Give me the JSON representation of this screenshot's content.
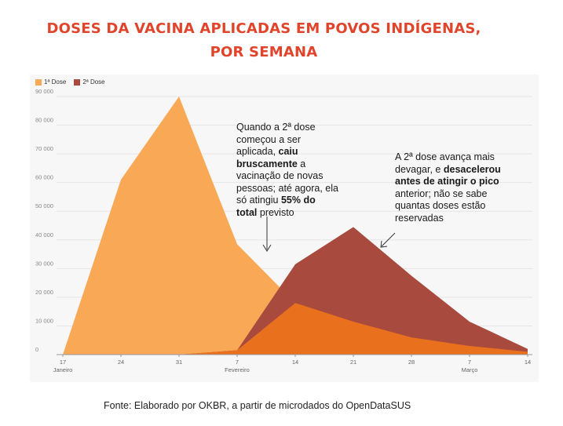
{
  "title_line1": "DOSES DA VACINA APLICADAS EM POVOS INDÍGENAS,",
  "title_line2": "POR SEMANA",
  "source": "Fonte: Elaborado por OKBR, a partir de microdados do OpenDataSUS",
  "annotation1": {
    "p1": "Quando a 2ª dose começou a ser aplicada, ",
    "b1": "caiu bruscamente",
    "p2": " a vacinação de novas pessoas; até agora, ela só atingiu ",
    "b2": "55% do total",
    "p3": " previsto"
  },
  "annotation2": {
    "p1": "A 2ª dose avança mais devagar, e ",
    "b1": "desacelerou antes de atingir o pico",
    "p2": " anterior; não se sabe quantas doses estão reservadas"
  },
  "colors": {
    "title": "#e0452c",
    "dose1": "#f9a855",
    "dose2": "#a94a3e",
    "overlap": "#e9711e",
    "plot_bg": "#f7f7f7",
    "grid": "#e6e6e6"
  },
  "chart_data": {
    "type": "area",
    "categories": [
      "17",
      "24",
      "31",
      "7",
      "14",
      "21",
      "28",
      "7",
      "14"
    ],
    "month_labels": [
      "Janeiro",
      "",
      "",
      "Fevereiro",
      "",
      "",
      "",
      "Março",
      ""
    ],
    "series": [
      {
        "name": "1ª Dose",
        "values": [
          0,
          61000,
          90000,
          38500,
          18000,
          11500,
          6000,
          3000,
          1000
        ]
      },
      {
        "name": "2ª Dose",
        "values": [
          0,
          0,
          0,
          1500,
          31500,
          44500,
          27500,
          11500,
          2000
        ]
      }
    ],
    "y_ticks": [
      "0",
      "10 000",
      "20 000",
      "30 000",
      "40 000",
      "50 000",
      "60 000",
      "70 000",
      "80 000",
      "90 000"
    ],
    "ylim": [
      0,
      90000
    ],
    "grid": true,
    "legend_position": "top-left"
  }
}
